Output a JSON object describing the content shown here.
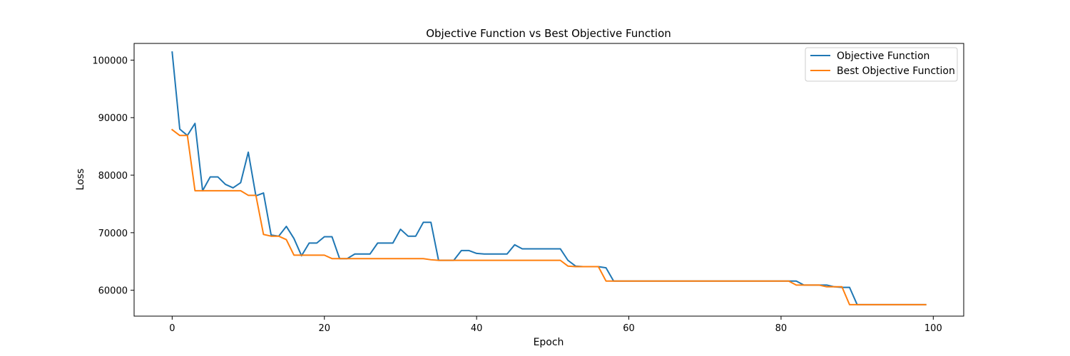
{
  "chart_data": {
    "type": "line",
    "title": "Objective Function vs Best Objective Function",
    "xlabel": "Epoch",
    "ylabel": "Loss",
    "xlim": [
      -5,
      104
    ],
    "ylim": [
      55500,
      102900
    ],
    "xticks": [
      0,
      20,
      40,
      60,
      80,
      100
    ],
    "xtick_labels": [
      "0",
      "20",
      "40",
      "60",
      "80",
      "100"
    ],
    "yticks": [
      60000,
      70000,
      80000,
      90000,
      100000
    ],
    "ytick_labels": [
      "60000",
      "70000",
      "80000",
      "90000",
      "100000"
    ],
    "grid": false,
    "legend_position": "top-right",
    "x": [
      0,
      1,
      2,
      3,
      4,
      5,
      6,
      7,
      8,
      9,
      10,
      11,
      12,
      13,
      14,
      15,
      16,
      17,
      18,
      19,
      20,
      21,
      22,
      23,
      24,
      25,
      26,
      27,
      28,
      29,
      30,
      31,
      32,
      33,
      34,
      35,
      36,
      37,
      38,
      39,
      40,
      41,
      42,
      43,
      44,
      45,
      46,
      47,
      48,
      49,
      50,
      51,
      52,
      53,
      54,
      55,
      56,
      57,
      58,
      59,
      60,
      61,
      62,
      63,
      64,
      65,
      66,
      67,
      68,
      69,
      70,
      71,
      72,
      73,
      74,
      75,
      76,
      77,
      78,
      79,
      80,
      81,
      82,
      83,
      84,
      85,
      86,
      87,
      88,
      89,
      90,
      91,
      92,
      93,
      94,
      95,
      96,
      97,
      98,
      99
    ],
    "series": [
      {
        "name": "Objective Function",
        "color": "#1f77b4",
        "values": [
          101400,
          88000,
          86900,
          89000,
          77300,
          79700,
          79700,
          78400,
          77800,
          78700,
          84000,
          76400,
          76900,
          69600,
          69400,
          71100,
          69000,
          66000,
          68200,
          68200,
          69300,
          69300,
          65500,
          65500,
          66300,
          66300,
          66300,
          68200,
          68200,
          68200,
          70600,
          69400,
          69400,
          71800,
          71800,
          65200,
          65200,
          65200,
          66900,
          66900,
          66400,
          66300,
          66300,
          66300,
          66300,
          67900,
          67200,
          67200,
          67200,
          67200,
          67200,
          67200,
          65200,
          64200,
          64100,
          64100,
          64100,
          63900,
          61600,
          61600,
          61600,
          61600,
          61600,
          61600,
          61600,
          61600,
          61600,
          61600,
          61600,
          61600,
          61600,
          61600,
          61600,
          61600,
          61600,
          61600,
          61600,
          61600,
          61600,
          61600,
          61600,
          61600,
          61600,
          60900,
          60900,
          60900,
          60900,
          60600,
          60500,
          60500,
          57500,
          57500,
          57500,
          57500,
          57500,
          57500,
          57500,
          57500,
          57500,
          57500
        ]
      },
      {
        "name": "Best Objective Function",
        "color": "#ff7f0e",
        "values": [
          87900,
          86900,
          86900,
          77300,
          77300,
          77300,
          77300,
          77300,
          77300,
          77300,
          76500,
          76500,
          69700,
          69400,
          69400,
          68800,
          66100,
          66100,
          66100,
          66100,
          66100,
          65500,
          65500,
          65500,
          65500,
          65500,
          65500,
          65500,
          65500,
          65500,
          65500,
          65500,
          65500,
          65500,
          65300,
          65200,
          65200,
          65200,
          65200,
          65200,
          65200,
          65200,
          65200,
          65200,
          65200,
          65200,
          65200,
          65200,
          65200,
          65200,
          65200,
          65200,
          64200,
          64100,
          64100,
          64100,
          64100,
          61600,
          61600,
          61600,
          61600,
          61600,
          61600,
          61600,
          61600,
          61600,
          61600,
          61600,
          61600,
          61600,
          61600,
          61600,
          61600,
          61600,
          61600,
          61600,
          61600,
          61600,
          61600,
          61600,
          61600,
          61600,
          60900,
          60900,
          60900,
          60900,
          60600,
          60600,
          60600,
          57500,
          57500,
          57500,
          57500,
          57500,
          57500,
          57500,
          57500,
          57500,
          57500,
          57500
        ]
      }
    ]
  }
}
